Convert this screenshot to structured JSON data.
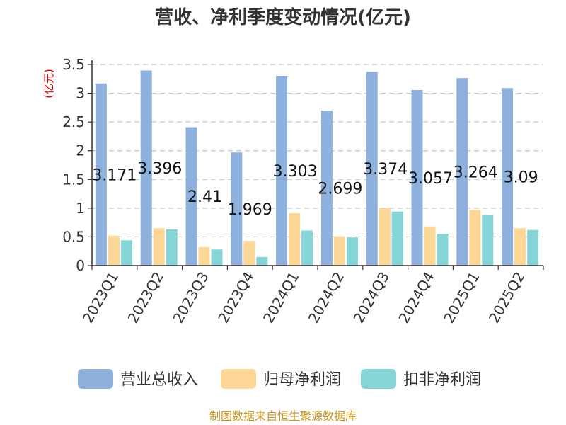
{
  "chart_data": {
    "type": "bar",
    "title": "营收、净利季度变动情况(亿元)",
    "ylabel": "(亿元)",
    "xlabel": "",
    "ylim": [
      0,
      3.5
    ],
    "yticks": [
      "0",
      "0.5",
      "1",
      "1.5",
      "2",
      "2.5",
      "3",
      "3.5"
    ],
    "grid": true,
    "legend_position": "bottom",
    "categories": [
      "2023Q1",
      "2023Q2",
      "2023Q3",
      "2023Q4",
      "2024Q1",
      "2024Q2",
      "2024Q3",
      "2024Q4",
      "2025Q1",
      "2025Q2"
    ],
    "series": [
      {
        "name": "营业总收入",
        "color": "#8eb0dc",
        "values": [
          3.171,
          3.396,
          2.41,
          1.969,
          3.303,
          2.699,
          3.374,
          3.057,
          3.264,
          3.09
        ]
      },
      {
        "name": "归母净利润",
        "color": "#fdd796",
        "values": [
          0.52,
          0.65,
          0.32,
          0.43,
          0.91,
          0.51,
          1.0,
          0.68,
          0.97,
          0.65
        ]
      },
      {
        "name": "扣非净利润",
        "color": "#85d5d6",
        "values": [
          0.44,
          0.63,
          0.28,
          0.15,
          0.61,
          0.49,
          0.94,
          0.55,
          0.88,
          0.62
        ]
      }
    ],
    "data_labels": [
      "3.171",
      "3.396",
      "2.41",
      "1.969",
      "3.303",
      "2.699",
      "3.374",
      "3.057",
      "3.264",
      "3.09"
    ]
  },
  "source": "制图数据来自恒生聚源数据库"
}
